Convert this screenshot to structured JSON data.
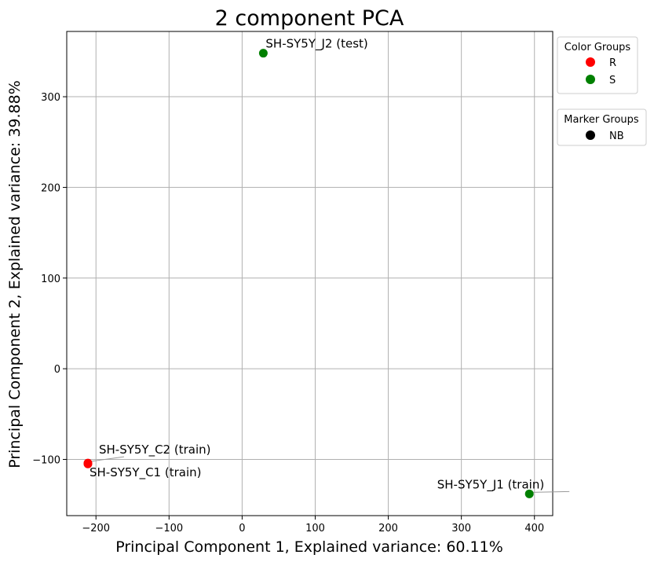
{
  "chart_data": {
    "type": "scatter",
    "title": "2 component PCA",
    "xlabel": "Principal Component 1, Explained variance: 60.11%",
    "ylabel": "Principal Component 2, Explained variance: 39.88%",
    "xlim": [
      -240,
      425
    ],
    "ylim": [
      -162,
      372
    ],
    "xticks": [
      -200,
      -100,
      0,
      100,
      200,
      300,
      400
    ],
    "yticks": [
      -100,
      0,
      100,
      200,
      300
    ],
    "xtick_labels": [
      "−200",
      "−100",
      "0",
      "100",
      "200",
      "300",
      "400"
    ],
    "ytick_labels": [
      "−100",
      "0",
      "100",
      "200",
      "300"
    ],
    "grid": true,
    "points": [
      {
        "label": "SH-SY5Y_J2 (test)",
        "x": 29,
        "y": 348,
        "group": "S",
        "color": "#008000"
      },
      {
        "label": "SH-SY5Y_C2 (train)",
        "x": -211,
        "y": -104,
        "group": "R",
        "color": "#ff0000"
      },
      {
        "label": "SH-SY5Y_C1 (train)",
        "x": -211,
        "y": -105,
        "group": "R",
        "color": "#ff0000"
      },
      {
        "label": "SH-SY5Y_J1 (train)",
        "x": 393,
        "y": -138,
        "group": "S",
        "color": "#008000"
      }
    ],
    "legends": [
      {
        "title": "Color Groups",
        "placement": "outside-top-right",
        "entries": [
          {
            "label": "R",
            "color": "#ff0000"
          },
          {
            "label": "S",
            "color": "#008000"
          }
        ]
      },
      {
        "title": "Marker Groups",
        "placement": "outside-right",
        "entries": [
          {
            "label": "NB",
            "color": "#000000"
          }
        ]
      }
    ]
  }
}
